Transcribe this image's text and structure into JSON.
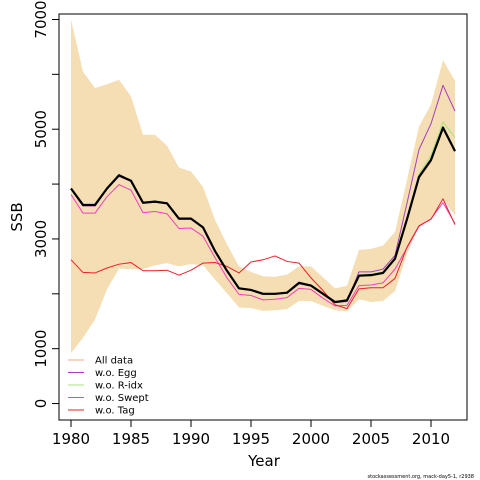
{
  "chart_data": {
    "type": "line",
    "xlabel": "Year",
    "ylabel": "SSB",
    "xlim": [
      1979,
      2013
    ],
    "ylim": [
      -300,
      7100
    ],
    "xticks": [
      1980,
      1985,
      1990,
      1995,
      2000,
      2005,
      2010
    ],
    "xtick_labels": [
      "1980",
      "1985",
      "1990",
      "1995",
      "2000",
      "2005",
      "2010"
    ],
    "yticks": [
      0,
      1000,
      3000,
      5000,
      7000
    ],
    "ytick_labels": [
      "0",
      "1000",
      "3000",
      "5000",
      "7000"
    ],
    "minor_yticks": [
      2000,
      4000,
      6000
    ],
    "x": [
      1980,
      1981,
      1982,
      1983,
      1984,
      1985,
      1986,
      1987,
      1988,
      1989,
      1990,
      1991,
      1992,
      1993,
      1994,
      1995,
      1996,
      1997,
      1998,
      1999,
      2000,
      2001,
      2002,
      2003,
      2004,
      2005,
      2006,
      2007,
      2008,
      2009,
      2010,
      2011,
      2012
    ],
    "band": {
      "upper": [
        7000,
        6050,
        5750,
        5820,
        5900,
        5600,
        4900,
        4900,
        4700,
        4300,
        4230,
        3950,
        3350,
        2900,
        2500,
        2400,
        2320,
        2310,
        2350,
        2500,
        2500,
        2300,
        2100,
        2150,
        2800,
        2820,
        2880,
        3130,
        4080,
        5050,
        5450,
        6260,
        5880
      ],
      "lower": [
        920,
        1200,
        1530,
        2080,
        2460,
        2450,
        2450,
        2520,
        2560,
        2500,
        2540,
        2520,
        2260,
        2010,
        1750,
        1740,
        1690,
        1700,
        1720,
        1870,
        1870,
        1780,
        1700,
        1680,
        1900,
        1850,
        1870,
        2050,
        2730,
        3240,
        3390,
        3720,
        3430
      ]
    },
    "series": [
      {
        "name": "All data",
        "color": "#f4a97d",
        "values": [
          3920,
          3620,
          3620,
          3920,
          4160,
          4060,
          3660,
          3680,
          3650,
          3370,
          3370,
          3210,
          2780,
          2420,
          2100,
          2070,
          2000,
          2000,
          2020,
          2200,
          2150,
          2000,
          1850,
          1880,
          2330,
          2340,
          2380,
          2640,
          3340,
          4100,
          4400,
          5000,
          4590
        ]
      },
      {
        "name": "w.o. Egg",
        "color": "#a63fbd",
        "values": [
          3910,
          3600,
          3600,
          3910,
          4140,
          4050,
          3650,
          3670,
          3640,
          3360,
          3360,
          3200,
          2770,
          2410,
          2090,
          2060,
          1990,
          1990,
          2010,
          2180,
          2140,
          1990,
          1840,
          1860,
          2400,
          2400,
          2450,
          2700,
          3650,
          4630,
          5100,
          5800,
          5330
        ]
      },
      {
        "name": "w.o. R-idx",
        "color": "#a8e27a",
        "values": [
          3930,
          3630,
          3630,
          3930,
          4170,
          4070,
          3670,
          3690,
          3660,
          3380,
          3380,
          3220,
          2790,
          2430,
          2110,
          2080,
          2010,
          2010,
          2030,
          2210,
          2160,
          2010,
          1860,
          1890,
          2350,
          2360,
          2400,
          2660,
          3400,
          4180,
          4520,
          5130,
          4850
        ]
      },
      {
        "name": "w.o. Swept",
        "color": "#ee3fbf",
        "values": [
          3810,
          3470,
          3470,
          3770,
          3990,
          3890,
          3480,
          3500,
          3460,
          3190,
          3200,
          3050,
          2660,
          2290,
          1990,
          1970,
          1890,
          1900,
          1930,
          2100,
          2080,
          1920,
          1780,
          1790,
          2150,
          2160,
          2200,
          2450,
          2840,
          3230,
          3370,
          3660,
          3280
        ]
      },
      {
        "name": "w.o. Tag",
        "color": "#e8202a",
        "values": [
          2620,
          2390,
          2380,
          2470,
          2540,
          2570,
          2420,
          2420,
          2430,
          2340,
          2430,
          2560,
          2570,
          2500,
          2380,
          2580,
          2620,
          2690,
          2590,
          2560,
          2290,
          2060,
          1800,
          1730,
          2090,
          2110,
          2110,
          2280,
          2850,
          3240,
          3360,
          3730,
          3260
        ]
      },
      {
        "name": "",
        "color": "#000000",
        "values": [
          3920,
          3620,
          3620,
          3920,
          4160,
          4060,
          3660,
          3680,
          3650,
          3370,
          3370,
          3210,
          2780,
          2420,
          2100,
          2070,
          2000,
          2000,
          2020,
          2200,
          2150,
          2000,
          1850,
          1880,
          2330,
          2340,
          2380,
          2640,
          3360,
          4130,
          4440,
          5030,
          4600
        ]
      }
    ],
    "legend": "bottom-left",
    "band_color": "#f5deb3",
    "grid": false
  },
  "footer_text": "stockassessment.org, mack-day5-1, r2938"
}
